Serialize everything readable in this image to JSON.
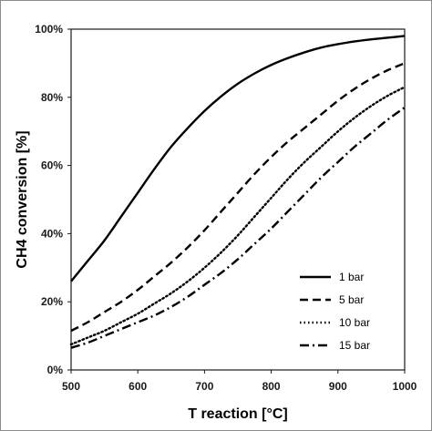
{
  "chart_data": {
    "type": "line",
    "xlabel": "T reaction [°C]",
    "ylabel": "CH4 conversion [%]",
    "xlim": [
      500,
      1000
    ],
    "ylim": [
      0,
      100
    ],
    "x_ticks": [
      500,
      600,
      700,
      800,
      900,
      1000
    ],
    "y_ticks": [
      0,
      20,
      40,
      60,
      80,
      100
    ],
    "y_tick_labels": [
      "0%",
      "20%",
      "40%",
      "60%",
      "80%",
      "100%"
    ],
    "grid": false,
    "legend_position": "bottom-right",
    "x": [
      500,
      525,
      550,
      575,
      600,
      625,
      650,
      675,
      700,
      725,
      750,
      775,
      800,
      825,
      850,
      875,
      900,
      925,
      950,
      975,
      1000
    ],
    "series": [
      {
        "name": "1 bar",
        "dash": "solid",
        "color": "#000000",
        "values": [
          26,
          32,
          38,
          45,
          52,
          59,
          65.5,
          71,
          76,
          80.3,
          84,
          87,
          89.5,
          91.5,
          93.2,
          94.6,
          95.6,
          96.4,
          97,
          97.5,
          98
        ]
      },
      {
        "name": "5 bar",
        "dash": "dashed",
        "color": "#000000",
        "values": [
          11.5,
          14,
          17,
          20,
          23.5,
          27.5,
          31.5,
          36,
          41,
          46.5,
          52,
          57.5,
          62.5,
          67,
          71,
          75,
          79,
          82.5,
          85.5,
          88,
          90
        ]
      },
      {
        "name": "10 bar",
        "dash": "dotted",
        "color": "#000000",
        "values": [
          7.5,
          9.5,
          11.5,
          14,
          16.5,
          19.5,
          22.5,
          26,
          30,
          34.5,
          39.5,
          45,
          50.5,
          56,
          61,
          65.5,
          70,
          74,
          77.5,
          80.5,
          83
        ]
      },
      {
        "name": "15 bar",
        "dash": "dashdot",
        "color": "#000000",
        "values": [
          6.5,
          8,
          10,
          12,
          14,
          16,
          18.5,
          21.5,
          25,
          28.5,
          32.5,
          37,
          41.5,
          46.5,
          51.5,
          56.5,
          61,
          65.5,
          69.5,
          73.5,
          77
        ]
      }
    ]
  }
}
